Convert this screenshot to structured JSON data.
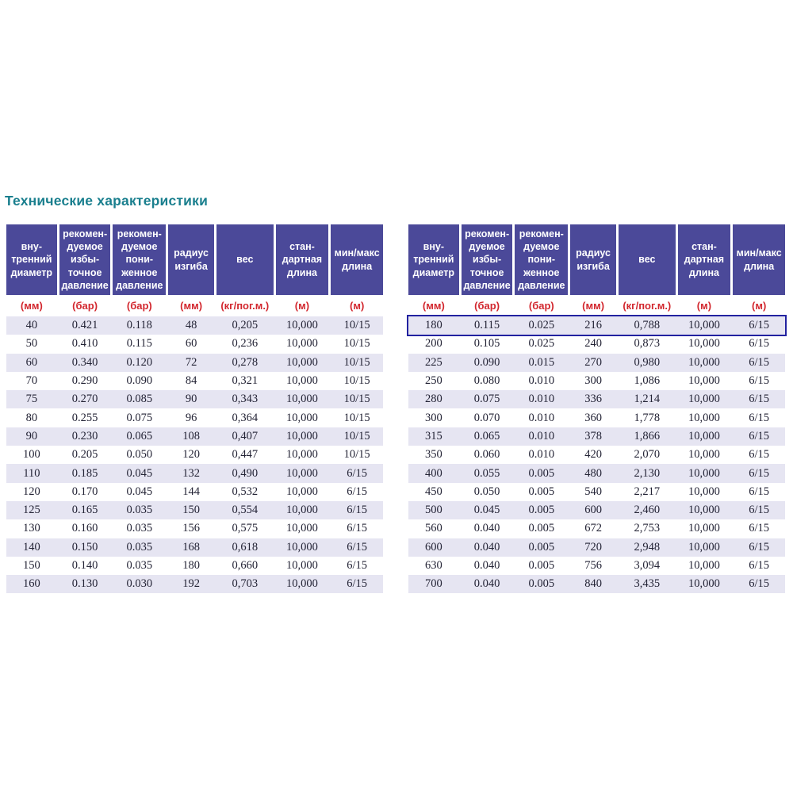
{
  "title": {
    "text": "Технические характеристики"
  },
  "colors": {
    "page_bg": "#ffffff",
    "title": "#1a7f8e",
    "header_bg": "#4b4999",
    "header_text": "#ffffff",
    "units_text": "#d2272e",
    "stripe_bg": "#e6e5f2",
    "data_text": "#232335",
    "highlight_border": "#2222a0"
  },
  "column_headers": [
    "вну-\nтренний\nдиаметр",
    "рекомен-\nдуемое\nизбы-\nточное\nдавление",
    "рекомен-\nдуемое\nпони-\nженное\nдавление",
    "радиус\nизгиба",
    "вес",
    "стан-\nдартная\nдлина",
    "мин/макс\nдлина"
  ],
  "units": [
    "(мм)",
    "(бар)",
    "(бар)",
    "(мм)",
    "(кг/пог.м.)",
    "(м)",
    "(м)"
  ],
  "tables": [
    {
      "id": "small-diameters",
      "highlighted_row": null,
      "rows": [
        [
          "40",
          "0.421",
          "0.118",
          "48",
          "0,205",
          "10,000",
          "10/15"
        ],
        [
          "50",
          "0.410",
          "0.115",
          "60",
          "0,236",
          "10,000",
          "10/15"
        ],
        [
          "60",
          "0.340",
          "0.120",
          "72",
          "0,278",
          "10,000",
          "10/15"
        ],
        [
          "70",
          "0.290",
          "0.090",
          "84",
          "0,321",
          "10,000",
          "10/15"
        ],
        [
          "75",
          "0.270",
          "0.085",
          "90",
          "0,343",
          "10,000",
          "10/15"
        ],
        [
          "80",
          "0.255",
          "0.075",
          "96",
          "0,364",
          "10,000",
          "10/15"
        ],
        [
          "90",
          "0.230",
          "0.065",
          "108",
          "0,407",
          "10,000",
          "10/15"
        ],
        [
          "100",
          "0.205",
          "0.050",
          "120",
          "0,447",
          "10,000",
          "10/15"
        ],
        [
          "110",
          "0.185",
          "0.045",
          "132",
          "0,490",
          "10,000",
          "6/15"
        ],
        [
          "120",
          "0.170",
          "0.045",
          "144",
          "0,532",
          "10,000",
          "6/15"
        ],
        [
          "125",
          "0.165",
          "0.035",
          "150",
          "0,554",
          "10,000",
          "6/15"
        ],
        [
          "130",
          "0.160",
          "0.035",
          "156",
          "0,575",
          "10,000",
          "6/15"
        ],
        [
          "140",
          "0.150",
          "0.035",
          "168",
          "0,618",
          "10,000",
          "6/15"
        ],
        [
          "150",
          "0.140",
          "0.035",
          "180",
          "0,660",
          "10,000",
          "6/15"
        ],
        [
          "160",
          "0.130",
          "0.030",
          "192",
          "0,703",
          "10,000",
          "6/15"
        ]
      ]
    },
    {
      "id": "large-diameters",
      "highlighted_row": 0,
      "rows": [
        [
          "180",
          "0.115",
          "0.025",
          "216",
          "0,788",
          "10,000",
          "6/15"
        ],
        [
          "200",
          "0.105",
          "0.025",
          "240",
          "0,873",
          "10,000",
          "6/15"
        ],
        [
          "225",
          "0.090",
          "0.015",
          "270",
          "0,980",
          "10,000",
          "6/15"
        ],
        [
          "250",
          "0.080",
          "0.010",
          "300",
          "1,086",
          "10,000",
          "6/15"
        ],
        [
          "280",
          "0.075",
          "0.010",
          "336",
          "1,214",
          "10,000",
          "6/15"
        ],
        [
          "300",
          "0.070",
          "0.010",
          "360",
          "1,778",
          "10,000",
          "6/15"
        ],
        [
          "315",
          "0.065",
          "0.010",
          "378",
          "1,866",
          "10,000",
          "6/15"
        ],
        [
          "350",
          "0.060",
          "0.010",
          "420",
          "2,070",
          "10,000",
          "6/15"
        ],
        [
          "400",
          "0.055",
          "0.005",
          "480",
          "2,130",
          "10,000",
          "6/15"
        ],
        [
          "450",
          "0.050",
          "0.005",
          "540",
          "2,217",
          "10,000",
          "6/15"
        ],
        [
          "500",
          "0.045",
          "0.005",
          "600",
          "2,460",
          "10,000",
          "6/15"
        ],
        [
          "560",
          "0.040",
          "0.005",
          "672",
          "2,753",
          "10,000",
          "6/15"
        ],
        [
          "600",
          "0.040",
          "0.005",
          "720",
          "2,948",
          "10,000",
          "6/15"
        ],
        [
          "630",
          "0.040",
          "0.005",
          "756",
          "3,094",
          "10,000",
          "6/15"
        ],
        [
          "700",
          "0.040",
          "0.005",
          "840",
          "3,435",
          "10,000",
          "6/15"
        ]
      ]
    }
  ]
}
